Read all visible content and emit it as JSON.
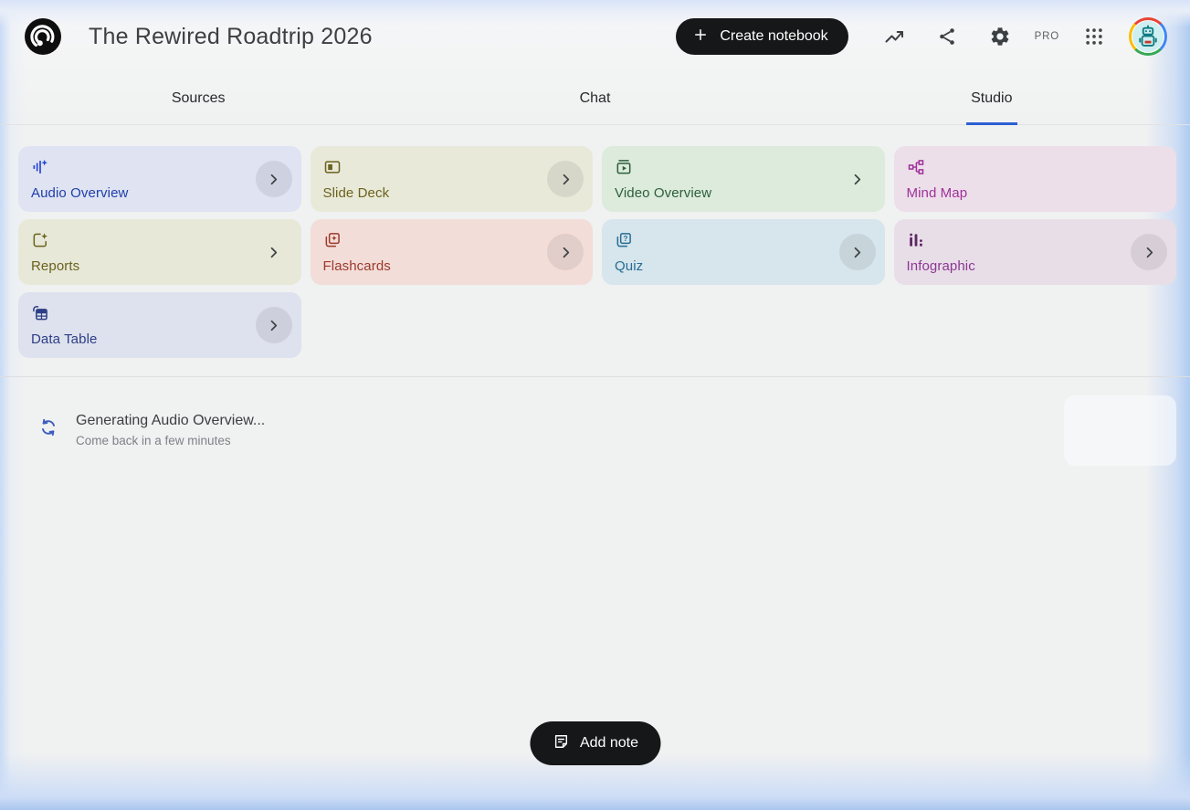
{
  "header": {
    "title": "The Rewired Roadtrip 2026",
    "create_notebook": "Create notebook",
    "pro_label": "PRO"
  },
  "tabs": [
    {
      "label": "Sources",
      "active": false
    },
    {
      "label": "Chat",
      "active": false
    },
    {
      "label": "Studio",
      "active": true
    }
  ],
  "studio": {
    "cards": [
      {
        "label": "Audio Overview",
        "icon": "audio-overview-icon",
        "bg": "#dfe3f2",
        "fg": "#1f40a8",
        "icon_color": "#2b4bd0",
        "chevron": "circle"
      },
      {
        "label": "Slide Deck",
        "icon": "slide-deck-icon",
        "bg": "#e9e9d9",
        "fg": "#6a621d",
        "icon_color": "#6a621d",
        "chevron": "circle"
      },
      {
        "label": "Video Overview",
        "icon": "video-overview-icon",
        "bg": "#dcebdb",
        "fg": "#2d5e3c",
        "icon_color": "#2d5e3c",
        "chevron": "plain"
      },
      {
        "label": "Mind Map",
        "icon": "mind-map-icon",
        "bg": "#ecdfe9",
        "fg": "#a0309b",
        "icon_color": "#a0309b",
        "chevron": "none"
      },
      {
        "label": "Reports",
        "icon": "reports-icon",
        "bg": "#e7e8d8",
        "fg": "#6a621d",
        "icon_color": "#6a621d",
        "chevron": "plain"
      },
      {
        "label": "Flashcards",
        "icon": "flashcards-icon",
        "bg": "#f3ddd9",
        "fg": "#9c392b",
        "icon_color": "#9c392b",
        "chevron": "circle"
      },
      {
        "label": "Quiz",
        "icon": "quiz-icon",
        "bg": "#d7e5ec",
        "fg": "#266d94",
        "icon_color": "#266d94",
        "chevron": "circle"
      },
      {
        "label": "Infographic",
        "icon": "infographic-icon",
        "bg": "#e8dee8",
        "fg": "#8c3793",
        "icon_color": "#5d2a62",
        "chevron": "circle"
      },
      {
        "label": "Data Table",
        "icon": "data-table-icon",
        "bg": "#dee1ee",
        "fg": "#2c3e84",
        "icon_color": "#2c3e84",
        "chevron": "circle"
      }
    ]
  },
  "status": {
    "title": "Generating Audio Overview...",
    "subtitle": "Come back in a few minutes",
    "spinner_color": "#3d5dc0"
  },
  "footer": {
    "add_note": "Add note"
  },
  "theme": {
    "accent": "#2b5fd3",
    "button_bg": "#161718",
    "button_fg": "#ffffff"
  }
}
